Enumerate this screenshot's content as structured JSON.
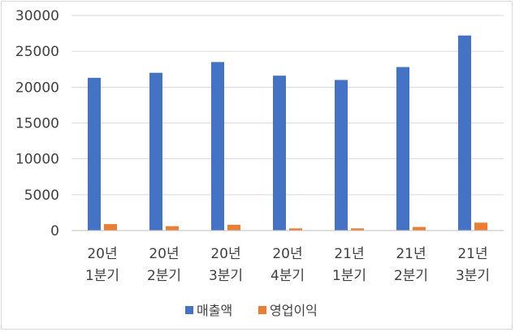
{
  "chart_data": {
    "type": "bar",
    "title": "",
    "xlabel": "",
    "ylabel": "",
    "ylim": [
      0,
      30000
    ],
    "yticks": [
      0,
      5000,
      10000,
      15000,
      20000,
      25000,
      30000
    ],
    "grid": true,
    "legend_position": "bottom",
    "categories": [
      [
        "20년",
        "1분기"
      ],
      [
        "20년",
        "2분기"
      ],
      [
        "20년",
        "3분기"
      ],
      [
        "20년",
        "4분기"
      ],
      [
        "21년",
        "1분기"
      ],
      [
        "21년",
        "2분기"
      ],
      [
        "21년",
        "3분기"
      ]
    ],
    "series": [
      {
        "name": "매출액",
        "color": "#4472c4",
        "values": [
          21300,
          22000,
          23500,
          21600,
          21000,
          22800,
          27200
        ]
      },
      {
        "name": "영업이익",
        "color": "#ed7d31",
        "values": [
          900,
          600,
          800,
          300,
          300,
          500,
          1100
        ]
      }
    ]
  }
}
